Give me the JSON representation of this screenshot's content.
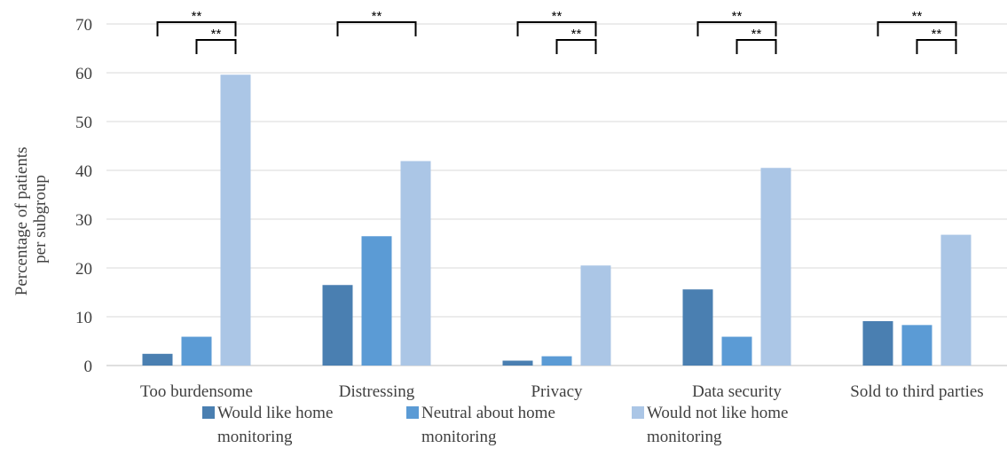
{
  "chart_data": {
    "type": "bar",
    "title": "",
    "xlabel": "",
    "ylabel_lines": [
      "Percentage of patients",
      "per subgroup"
    ],
    "ylim": [
      0,
      70
    ],
    "y_ticks": [
      "0",
      "10",
      "20",
      "30",
      "40",
      "50",
      "60",
      "70"
    ],
    "categories": [
      "Too burdensome",
      "Distressing",
      "Privacy",
      "Data security",
      "Sold to third parties"
    ],
    "series": [
      {
        "name": "Would like home monitoring",
        "legend_lines": [
          "Would like home",
          "monitoring"
        ],
        "color": "#4a7fb1",
        "values": [
          2.4,
          16.5,
          1.0,
          15.6,
          9.1
        ]
      },
      {
        "name": "Neutral about home monitoring",
        "legend_lines": [
          "Neutral about home",
          "monitoring"
        ],
        "color": "#5b9bd5",
        "values": [
          5.9,
          26.5,
          1.9,
          5.9,
          8.3
        ]
      },
      {
        "name": "Would not like home monitoring",
        "legend_lines": [
          "Would not like home",
          "monitoring"
        ],
        "color": "#abc6e6",
        "values": [
          59.6,
          41.9,
          20.5,
          40.5,
          26.8
        ]
      }
    ],
    "significance_label": "**",
    "significance": [
      {
        "category": 0,
        "pairs": [
          [
            0,
            2
          ],
          [
            1,
            2
          ]
        ]
      },
      {
        "category": 1,
        "pairs": [
          [
            0,
            2
          ]
        ]
      },
      {
        "category": 2,
        "pairs": [
          [
            0,
            2
          ],
          [
            1,
            2
          ]
        ]
      },
      {
        "category": 3,
        "pairs": [
          [
            0,
            2
          ],
          [
            1,
            2
          ]
        ]
      },
      {
        "category": 4,
        "pairs": [
          [
            0,
            2
          ],
          [
            1,
            2
          ]
        ]
      }
    ],
    "grid": true,
    "legend_position": "bottom"
  }
}
